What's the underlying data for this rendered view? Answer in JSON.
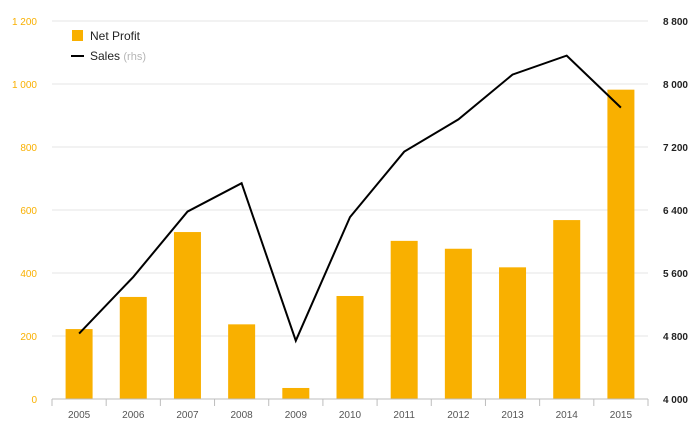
{
  "chart_data": {
    "type": "bar",
    "categories": [
      "2005",
      "2006",
      "2007",
      "2008",
      "2009",
      "2010",
      "2011",
      "2012",
      "2013",
      "2014",
      "2015"
    ],
    "series": [
      {
        "name": "Net Profit",
        "type": "bar",
        "axis": "left",
        "color": "#f9b000",
        "values": [
          222,
          324,
          530,
          237,
          35,
          327,
          502,
          477,
          418,
          568,
          982
        ]
      },
      {
        "name": "Sales",
        "name_suffix": "(rhs)",
        "type": "line",
        "axis": "right",
        "color": "#000000",
        "values": [
          4830,
          5550,
          6380,
          6740,
          4740,
          6310,
          7140,
          7550,
          8120,
          8360,
          7700
        ]
      }
    ],
    "y_left": {
      "ylim": [
        0,
        1200
      ],
      "ticks": [
        0,
        200,
        400,
        600,
        800,
        1000,
        1200
      ],
      "tick_labels": [
        "0",
        "200",
        "400",
        "600",
        "800",
        "1 000",
        "1 200"
      ],
      "color": "#f9b000"
    },
    "y_right": {
      "ylim": [
        4000,
        8800
      ],
      "ticks": [
        4000,
        4800,
        5600,
        6400,
        7200,
        8000,
        8800
      ],
      "tick_labels": [
        "4 000",
        "4 800",
        "5 600",
        "6 400",
        "7 200",
        "8 000",
        "8 800"
      ]
    },
    "grid": true,
    "legend_position": "top-left"
  }
}
